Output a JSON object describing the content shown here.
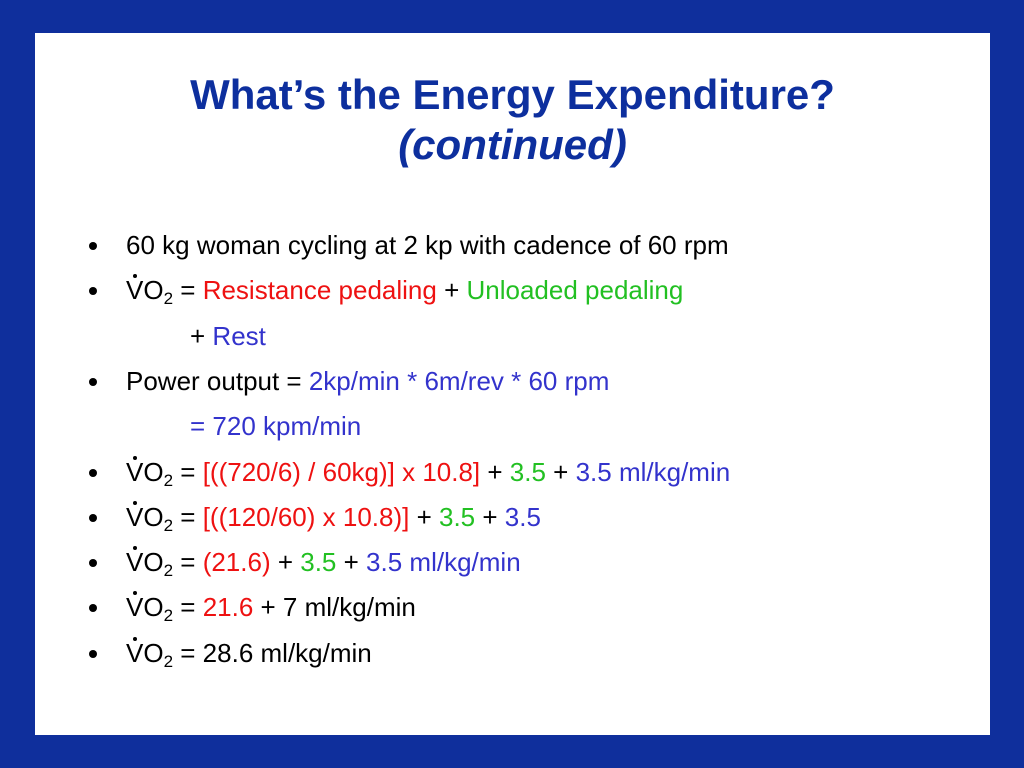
{
  "title": "What’s the Energy Expenditure?",
  "subtitle": "(continued)",
  "lines": [
    {
      "bullet": true,
      "segments": [
        {
          "text": "60 kg woman cycling at 2 kp with cadence of 60 rpm",
          "color": "#000000"
        }
      ]
    },
    {
      "bullet": true,
      "segments": [
        {
          "text": "VO",
          "color": "#000000",
          "overdot": true
        },
        {
          "text": "2",
          "color": "#000000",
          "style": "subscript"
        },
        {
          "text": " = ",
          "color": "#000000"
        },
        {
          "text": "Resistance pedaling",
          "color": "#ee1111"
        },
        {
          "text": " + ",
          "color": "#000000"
        },
        {
          "text": "Unloaded pedaling",
          "color": "#22c022"
        }
      ]
    },
    {
      "bullet": false,
      "segments": [
        {
          "text": "+ ",
          "color": "#000000"
        },
        {
          "text": "Rest",
          "color": "#3333cc"
        }
      ]
    },
    {
      "bullet": true,
      "segments": [
        {
          "text": "Power output = ",
          "color": "#000000"
        },
        {
          "text": "2kp/min * 6m/rev * 60 rpm",
          "color": "#3333cc"
        }
      ]
    },
    {
      "bullet": false,
      "segments": [
        {
          "text": "= 720 kpm/min",
          "color": "#3333cc"
        }
      ]
    },
    {
      "bullet": true,
      "segments": [
        {
          "text": "VO",
          "color": "#000000",
          "overdot": true
        },
        {
          "text": "2",
          "color": "#000000",
          "style": "subscript"
        },
        {
          "text": " = ",
          "color": "#000000"
        },
        {
          "text": "[((720/6) / 60kg)] x 10.8]",
          "color": "#ee1111"
        },
        {
          "text": " + ",
          "color": "#000000"
        },
        {
          "text": "3.5",
          "color": "#22c022"
        },
        {
          "text": " + ",
          "color": "#000000"
        },
        {
          "text": "3.5 ml/kg/min",
          "color": "#3333cc"
        }
      ]
    },
    {
      "bullet": true,
      "segments": [
        {
          "text": "VO",
          "color": "#000000",
          "overdot": true
        },
        {
          "text": "2",
          "color": "#000000",
          "style": "subscript"
        },
        {
          "text": " = ",
          "color": "#000000"
        },
        {
          "text": "[((120/60) x 10.8)]",
          "color": "#ee1111"
        },
        {
          "text": " + ",
          "color": "#000000"
        },
        {
          "text": "3.5",
          "color": "#22c022"
        },
        {
          "text": " + ",
          "color": "#000000"
        },
        {
          "text": "3.5",
          "color": "#3333cc"
        }
      ]
    },
    {
      "bullet": true,
      "segments": [
        {
          "text": "VO",
          "color": "#000000",
          "overdot": true
        },
        {
          "text": "2",
          "color": "#000000",
          "style": "subscript"
        },
        {
          "text": " = ",
          "color": "#000000"
        },
        {
          "text": "(21.6)",
          "color": "#ee1111"
        },
        {
          "text": " + ",
          "color": "#000000"
        },
        {
          "text": "3.5",
          "color": "#22c022"
        },
        {
          "text": " + ",
          "color": "#000000"
        },
        {
          "text": "3.5 ml/kg/min",
          "color": "#3333cc"
        }
      ]
    },
    {
      "bullet": true,
      "segments": [
        {
          "text": "VO",
          "color": "#000000",
          "overdot": true
        },
        {
          "text": "2",
          "color": "#000000",
          "style": "subscript"
        },
        {
          "text": " = ",
          "color": "#000000"
        },
        {
          "text": "21.6",
          "color": "#ee1111"
        },
        {
          "text": " + 7 ml/kg/min",
          "color": "#000000"
        }
      ]
    },
    {
      "bullet": true,
      "segments": [
        {
          "text": "VO",
          "color": "#000000",
          "overdot": true
        },
        {
          "text": "2",
          "color": "#000000",
          "style": "subscript"
        },
        {
          "text": " = 28.6 ml/kg/min",
          "color": "#000000"
        }
      ]
    }
  ]
}
